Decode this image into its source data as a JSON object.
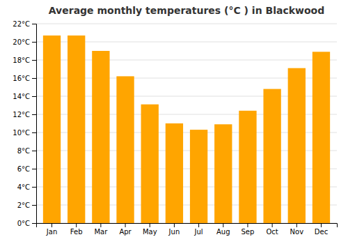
{
  "chart_data": {
    "type": "bar",
    "title": "Average monthly temperatures (°C ) in Blackwood",
    "categories": [
      "Jan",
      "Feb",
      "Mar",
      "Apr",
      "May",
      "Jun",
      "Jul",
      "Aug",
      "Sep",
      "Oct",
      "Nov",
      "Dec"
    ],
    "values": [
      20.7,
      20.7,
      19.0,
      16.2,
      13.1,
      11.0,
      10.3,
      10.9,
      12.4,
      14.8,
      17.1,
      18.9
    ],
    "color": "#FFA500",
    "ylim": [
      0,
      22
    ],
    "yticks": [
      {
        "value": 0,
        "label": "0°C"
      },
      {
        "value": 2,
        "label": "2°C"
      },
      {
        "value": 4,
        "label": "4°C"
      },
      {
        "value": 6,
        "label": "6°C"
      },
      {
        "value": 8,
        "label": "8°C"
      },
      {
        "value": 10,
        "label": "10°C"
      },
      {
        "value": 12,
        "label": "12°C"
      },
      {
        "value": 14,
        "label": "14°C"
      },
      {
        "value": 16,
        "label": "16°C"
      },
      {
        "value": 18,
        "label": "18°C"
      },
      {
        "value": 20,
        "label": "20°C"
      },
      {
        "value": 22,
        "label": "22°C"
      }
    ],
    "grid": true
  }
}
